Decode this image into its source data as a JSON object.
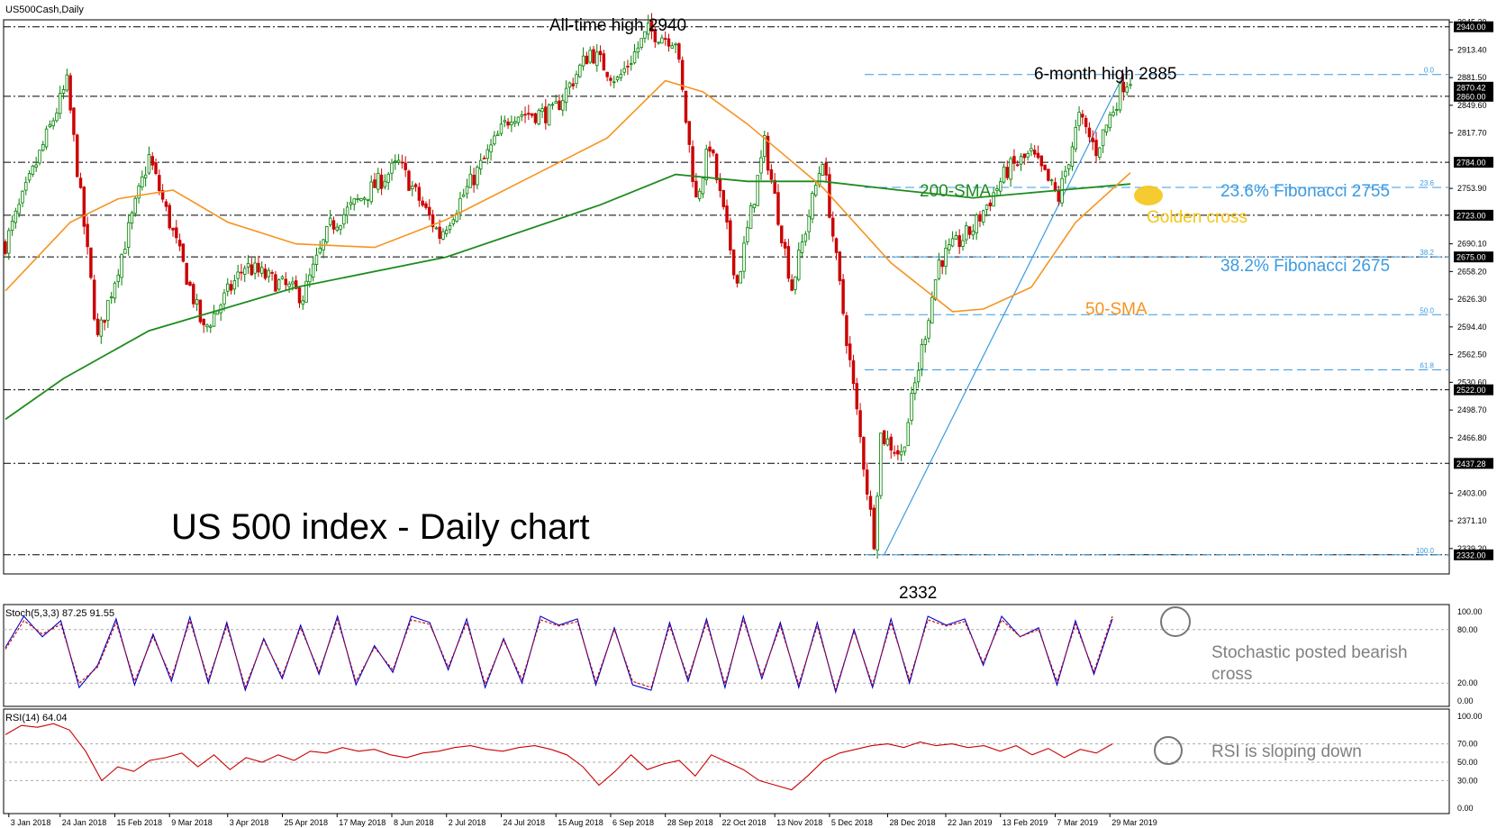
{
  "window": {
    "title": "US500Cash,Daily"
  },
  "chart_data": [
    {
      "type": "candlestick",
      "title": "US 500 index - Daily chart",
      "symbol": "US500Cash,Daily",
      "ylim": [
        2310,
        2948
      ],
      "y_ticks": [
        2945.2,
        2913.4,
        2881.5,
        2849.6,
        2817.7,
        2753.9,
        2690.1,
        2658.2,
        2626.3,
        2594.4,
        2562.5,
        2530.6,
        2498.7,
        2466.8,
        2403.0,
        2371.1,
        2339.2
      ],
      "y_tick_labels": [
        "2945.20",
        "2913.40",
        "2881.50",
        "2849.60",
        "2817.70",
        "2753.90",
        "2690.10",
        "2658.20",
        "2626.30",
        "2594.40",
        "2562.50",
        "2530.60",
        "2498.70",
        "2466.80",
        "2403.00",
        "2371.10",
        "2339.20"
      ],
      "highlighted_levels": [
        {
          "value": 2940.0,
          "label": "2940.00"
        },
        {
          "value": 2870.42,
          "label": "2870.42"
        },
        {
          "value": 2860.0,
          "label": "2860.00"
        },
        {
          "value": 2784.0,
          "label": "2784.00"
        },
        {
          "value": 2723.0,
          "label": "2723.00"
        },
        {
          "value": 2675.0,
          "label": "2675.00"
        },
        {
          "value": 2522.0,
          "label": "2522.00"
        },
        {
          "value": 2437.28,
          "label": "2437.28"
        },
        {
          "value": 2332.0,
          "label": "2332.00"
        }
      ],
      "horizontal_levels": [
        2940,
        2860,
        2784,
        2723,
        2675,
        2522,
        2437.28,
        2332
      ],
      "fibonacci_levels": [
        {
          "value": 2885,
          "label": "0.0"
        },
        {
          "value": 2755,
          "label": "23.6"
        },
        {
          "value": 2675,
          "label": "38.2"
        },
        {
          "value": 2608.5,
          "label": "50.0"
        },
        {
          "value": 2545,
          "label": "61.8"
        },
        {
          "value": 2332,
          "label": "100.0"
        }
      ],
      "fib_trendline": {
        "from": [
          "27 Dec 2018",
          2332
        ],
        "to": [
          "4 Apr 2019",
          2885
        ]
      },
      "x_labels": [
        "3 Jan 2018",
        "24 Jan 2018",
        "15 Feb 2018",
        "9 Mar 2018",
        "3 Apr 2018",
        "25 Apr 2018",
        "17 May 2018",
        "8 Jun 2018",
        "2 Jul 2018",
        "24 Jul 2018",
        "15 Aug 2018",
        "6 Sep 2018",
        "28 Sep 2018",
        "22 Oct 2018",
        "13 Nov 2018",
        "5 Dec 2018",
        "28 Dec 2018",
        "22 Jan 2019",
        "13 Feb 2019",
        "7 Mar 2019",
        "29 Mar 2019"
      ],
      "anchors": [
        [
          "2 Jan 2018",
          2690
        ],
        [
          "26 Jan 2018",
          2875
        ],
        [
          "8 Feb 2018",
          2580
        ],
        [
          "1 Mar 2018",
          2790
        ],
        [
          "23 Mar 2018",
          2590
        ],
        [
          "10 Apr 2018",
          2665
        ],
        [
          "3 May 2018",
          2630
        ],
        [
          "15 May 2018",
          2710
        ],
        [
          "12 Jun 2018",
          2782
        ],
        [
          "28 Jun 2018",
          2700
        ],
        [
          "27 Jul 2018",
          2840
        ],
        [
          "14 Aug 2018",
          2840
        ],
        [
          "29 Aug 2018",
          2912
        ],
        [
          "10 Sep 2018",
          2878
        ],
        [
          "21 Sep 2018",
          2935
        ],
        [
          "3 Oct 2018",
          2925
        ],
        [
          "11 Oct 2018",
          2740
        ],
        [
          "17 Oct 2018",
          2805
        ],
        [
          "29 Oct 2018",
          2645
        ],
        [
          "8 Nov 2018",
          2805
        ],
        [
          "20 Nov 2018",
          2640
        ],
        [
          "3 Dec 2018",
          2790
        ],
        [
          "10 Dec 2018",
          2640
        ],
        [
          "24 Dec 2018",
          2350
        ],
        [
          "26 Dec 2018",
          2470
        ],
        [
          "3 Jan 2019",
          2447
        ],
        [
          "18 Jan 2019",
          2670
        ],
        [
          "1 Feb 2019",
          2708
        ],
        [
          "15 Feb 2019",
          2775
        ],
        [
          "26 Feb 2019",
          2793
        ],
        [
          "8 Mar 2019",
          2743
        ],
        [
          "18 Mar 2019",
          2835
        ],
        [
          "25 Mar 2019",
          2798
        ],
        [
          "4 Apr 2019",
          2875
        ],
        [
          "8 Apr 2019",
          2880
        ]
      ],
      "sma50_anchors": [
        [
          "2 Jan 2018",
          2636
        ],
        [
          "29 Jan 2018",
          2715
        ],
        [
          "16 Feb 2018",
          2742
        ],
        [
          "12 Mar 2018",
          2752
        ],
        [
          "3 Apr 2018",
          2715
        ],
        [
          "1 May 2018",
          2690
        ],
        [
          "1 Jun 2018",
          2686
        ],
        [
          "2 Jul 2018",
          2718
        ],
        [
          "1 Aug 2018",
          2762
        ],
        [
          "5 Sep 2018",
          2812
        ],
        [
          "28 Sep 2018",
          2878
        ],
        [
          "15 Oct 2018",
          2865
        ],
        [
          "1 Nov 2018",
          2828
        ],
        [
          "3 Dec 2018",
          2755
        ],
        [
          "31 Dec 2018",
          2668
        ],
        [
          "24 Jan 2019",
          2612
        ],
        [
          "6 Feb 2019",
          2615
        ],
        [
          "26 Feb 2019",
          2640
        ],
        [
          "15 Mar 2019",
          2715
        ],
        [
          "8 Apr 2019",
          2772
        ]
      ],
      "sma200_anchors": [
        [
          "2 Jan 2018",
          2488
        ],
        [
          "25 Jan 2018",
          2535
        ],
        [
          "1 Mar 2018",
          2590
        ],
        [
          "1 May 2018",
          2640
        ],
        [
          "2 Jul 2018",
          2675
        ],
        [
          "1 Sep 2018",
          2735
        ],
        [
          "3 Oct 2018",
          2770
        ],
        [
          "1 Nov 2018",
          2762
        ],
        [
          "1 Dec 2018",
          2762
        ],
        [
          "2 Jan 2019",
          2752
        ],
        [
          "1 Feb 2019",
          2743
        ],
        [
          "1 Mar 2019",
          2750
        ],
        [
          "8 Apr 2019",
          2759
        ]
      ],
      "annotations": {
        "all_time_high": "All-time high 2940",
        "six_month_high": "6-month high 2885",
        "low": "2332",
        "sma200": "200-SMA",
        "sma50": "50-SMA",
        "fib_236": "23.6% Fibonacci 2755",
        "fib_382": "38.2% Fibonacci 2675",
        "golden_cross": "Golden cross"
      },
      "colors": {
        "up": "#008000",
        "down": "#cc0000",
        "sma50": "#f7931e",
        "sma200": "#1e8c1e",
        "fib": "#3b9ae1",
        "level": "#000000",
        "golden_cross": "#f5c518"
      }
    },
    {
      "type": "line",
      "indicator": "Stochastic",
      "header": "Stoch(5,3,3) 87.25 91.55",
      "ylim": [
        0,
        100
      ],
      "y_ticks": [
        100,
        80,
        20,
        0
      ],
      "y_tick_labels": [
        "100.00",
        "80.00",
        "20.00",
        "0.00"
      ],
      "series": [
        {
          "name": "%K",
          "values": [
            60,
            95,
            72,
            90,
            15,
            40,
            92,
            18,
            75,
            22,
            94,
            20,
            88,
            12,
            70,
            25,
            85,
            30,
            95,
            18,
            62,
            32,
            95,
            88,
            35,
            92,
            15,
            70,
            20,
            95,
            85,
            92,
            18,
            82,
            18,
            12,
            88,
            22,
            92,
            15,
            95,
            25,
            88,
            15,
            88,
            10,
            80,
            15,
            92,
            20,
            95,
            85,
            92,
            40,
            95,
            72,
            82,
            18,
            90,
            30,
            92
          ],
          "color": "#0000cc"
        },
        {
          "name": "%D",
          "values": [
            58,
            90,
            75,
            86,
            20,
            38,
            88,
            22,
            72,
            26,
            90,
            24,
            84,
            16,
            68,
            28,
            82,
            33,
            91,
            22,
            60,
            35,
            91,
            86,
            38,
            88,
            19,
            68,
            24,
            91,
            84,
            89,
            22,
            80,
            22,
            15,
            84,
            26,
            88,
            19,
            91,
            28,
            84,
            19,
            84,
            13,
            78,
            18,
            88,
            24,
            91,
            84,
            89,
            43,
            91,
            72,
            80,
            22,
            86,
            33,
            95
          ],
          "color": "#cc0000"
        }
      ],
      "annotation": "Stochastic posted bearish cross"
    },
    {
      "type": "line",
      "indicator": "RSI",
      "header": "RSI(14) 64.04",
      "ylim": [
        0,
        100
      ],
      "y_ticks": [
        100,
        70,
        50,
        30,
        0
      ],
      "y_tick_labels": [
        "100.00",
        "70.00",
        "50.00",
        "30.00",
        "0.00"
      ],
      "series": [
        {
          "name": "RSI",
          "values": [
            80,
            90,
            88,
            92,
            85,
            62,
            30,
            45,
            40,
            52,
            55,
            60,
            45,
            58,
            42,
            55,
            50,
            58,
            52,
            62,
            60,
            66,
            62,
            64,
            58,
            55,
            60,
            62,
            66,
            68,
            64,
            62,
            66,
            68,
            64,
            58,
            45,
            25,
            40,
            58,
            42,
            48,
            52,
            35,
            58,
            50,
            42,
            30,
            25,
            20,
            35,
            52,
            60,
            64,
            68,
            70,
            66,
            72,
            68,
            70,
            66,
            68,
            62,
            68,
            58,
            65,
            55,
            64,
            60,
            70
          ],
          "color": "#cc0000"
        }
      ],
      "annotation": "RSI is sloping down"
    }
  ]
}
